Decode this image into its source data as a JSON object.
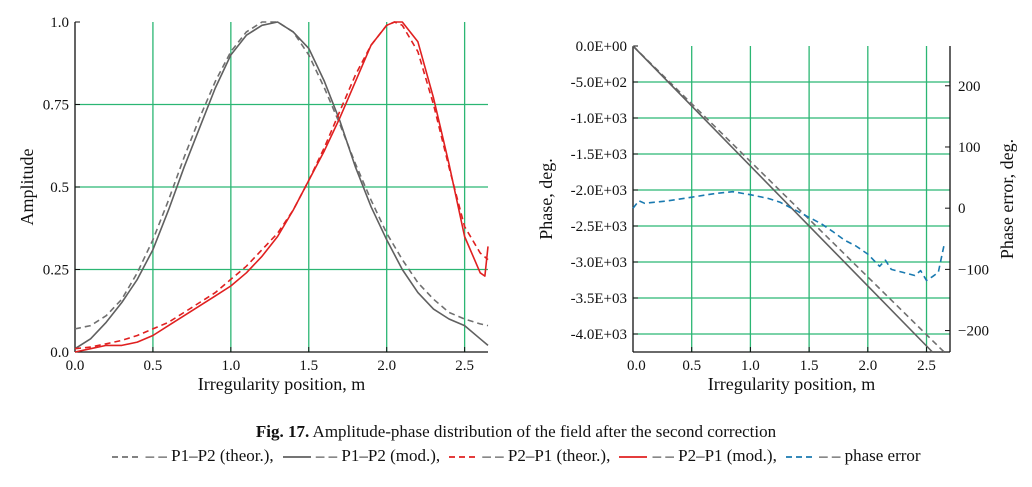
{
  "caption": {
    "number": "Fig. 17.",
    "text": "Amplitude-phase distribution of the field after the second correction"
  },
  "legend": [
    {
      "label": "– – P1–P2 (theor.),",
      "color": "#707070",
      "dash": "6,4"
    },
    {
      "label": "– – P1–P2 (mod.),",
      "color": "#606060",
      "dash": ""
    },
    {
      "label": "– – P2–P1 (theor.),",
      "color": "#e02020",
      "dash": "6,4"
    },
    {
      "label": "– – P2–P1 (mod.),",
      "color": "#e02020",
      "dash": ""
    },
    {
      "label": "– – phase error",
      "color": "#1a7ab0",
      "dash": "6,4"
    }
  ],
  "colors": {
    "grid": "#2bb673",
    "gray_theor": "#707070",
    "gray_mod": "#606060",
    "red": "#e02020",
    "blue": "#1a7ab0"
  },
  "chart_data": [
    {
      "type": "line",
      "xlabel": "Irregularity position, m",
      "ylabel": "Amplitude",
      "xlim": [
        0,
        2.65
      ],
      "ylim": [
        0,
        1.0
      ],
      "x_ticks": [
        "0.0",
        "0.5",
        "1.0",
        "1.5",
        "2.0",
        "2.5"
      ],
      "y_ticks": [
        "0.0",
        "0.25",
        "0.5",
        "0.75",
        "1.0"
      ],
      "grid": true,
      "series": [
        {
          "name": "P1–P2 (theor.)",
          "style": "dashed",
          "color": "#707070",
          "x": [
            0,
            0.1,
            0.2,
            0.3,
            0.4,
            0.5,
            0.6,
            0.7,
            0.8,
            0.9,
            1.0,
            1.1,
            1.2,
            1.3,
            1.4,
            1.5,
            1.6,
            1.7,
            1.8,
            1.9,
            2.0,
            2.1,
            2.2,
            2.3,
            2.4,
            2.5,
            2.6,
            2.65
          ],
          "y": [
            0.07,
            0.08,
            0.11,
            0.16,
            0.24,
            0.34,
            0.46,
            0.59,
            0.71,
            0.82,
            0.91,
            0.97,
            1.0,
            1.0,
            0.97,
            0.9,
            0.8,
            0.69,
            0.57,
            0.46,
            0.36,
            0.28,
            0.21,
            0.16,
            0.12,
            0.1,
            0.085,
            0.08
          ]
        },
        {
          "name": "P1–P2 (mod.)",
          "style": "solid",
          "color": "#606060",
          "x": [
            0,
            0.1,
            0.2,
            0.3,
            0.4,
            0.5,
            0.6,
            0.7,
            0.8,
            0.9,
            1.0,
            1.1,
            1.2,
            1.3,
            1.4,
            1.5,
            1.6,
            1.7,
            1.8,
            1.9,
            2.0,
            2.1,
            2.2,
            2.3,
            2.4,
            2.5,
            2.6,
            2.65
          ],
          "y": [
            0.01,
            0.04,
            0.09,
            0.15,
            0.22,
            0.31,
            0.43,
            0.56,
            0.68,
            0.8,
            0.9,
            0.96,
            0.99,
            1.0,
            0.97,
            0.92,
            0.82,
            0.7,
            0.56,
            0.44,
            0.34,
            0.25,
            0.18,
            0.13,
            0.1,
            0.08,
            0.04,
            0.02
          ]
        },
        {
          "name": "P2–P1 (theor.)",
          "style": "dashed",
          "color": "#e02020",
          "x": [
            0,
            0.1,
            0.2,
            0.3,
            0.4,
            0.5,
            0.6,
            0.7,
            0.8,
            0.9,
            1.0,
            1.1,
            1.2,
            1.3,
            1.4,
            1.5,
            1.6,
            1.7,
            1.8,
            1.9,
            2.0,
            2.05,
            2.1,
            2.2,
            2.3,
            2.4,
            2.5,
            2.6,
            2.65
          ],
          "y": [
            0.01,
            0.015,
            0.025,
            0.035,
            0.05,
            0.07,
            0.09,
            0.12,
            0.15,
            0.18,
            0.22,
            0.26,
            0.31,
            0.36,
            0.43,
            0.52,
            0.62,
            0.73,
            0.84,
            0.93,
            0.99,
            1.0,
            0.99,
            0.91,
            0.75,
            0.56,
            0.38,
            0.3,
            0.28
          ]
        },
        {
          "name": "P2–P1 (mod.)",
          "style": "solid",
          "color": "#e02020",
          "x": [
            0,
            0.1,
            0.2,
            0.3,
            0.4,
            0.5,
            0.6,
            0.7,
            0.8,
            0.9,
            1.0,
            1.1,
            1.2,
            1.3,
            1.4,
            1.5,
            1.6,
            1.7,
            1.8,
            1.9,
            2.0,
            2.05,
            2.1,
            2.2,
            2.3,
            2.4,
            2.5,
            2.6,
            2.63,
            2.65
          ],
          "y": [
            0.0,
            0.01,
            0.02,
            0.02,
            0.03,
            0.05,
            0.08,
            0.11,
            0.14,
            0.17,
            0.2,
            0.24,
            0.29,
            0.35,
            0.43,
            0.52,
            0.61,
            0.71,
            0.82,
            0.93,
            0.99,
            1.0,
            1.0,
            0.94,
            0.77,
            0.57,
            0.35,
            0.24,
            0.23,
            0.32
          ]
        }
      ]
    },
    {
      "type": "line",
      "xlabel": "Irregularity position, m",
      "ylabel": "Phase, deg.",
      "ylabel_right": "Phase error, deg.",
      "xlim": [
        0,
        2.7
      ],
      "ylim": [
        -4250,
        0
      ],
      "ylim_right": [
        -235,
        265
      ],
      "x_ticks": [
        "0.0",
        "0.5",
        "1.0",
        "1.5",
        "2.0",
        "2.5"
      ],
      "y_ticks": [
        "0.0E+00",
        "-5.0E+02",
        "-1.0E+03",
        "-1.5E+03",
        "-2.0E+03",
        "-2.5E+03",
        "-3.0E+03",
        "-3.5E+03",
        "-4.0E+03"
      ],
      "y_ticks_right": [
        "200",
        "100",
        "0",
        "−100",
        "−200"
      ],
      "grid": true,
      "series": [
        {
          "name": "P1–P2 (theor.)",
          "style": "dashed",
          "color": "#707070",
          "axis": "left",
          "x": [
            0,
            2.65
          ],
          "y": [
            0,
            -4250
          ]
        },
        {
          "name": "P1–P2 (mod.)",
          "style": "solid",
          "color": "#606060",
          "axis": "left",
          "x": [
            0,
            2.55
          ],
          "y": [
            0,
            -4250
          ]
        },
        {
          "name": "phase error",
          "style": "dashed",
          "color": "#1a7ab0",
          "axis": "right",
          "x": [
            0,
            0.05,
            0.1,
            0.3,
            0.5,
            0.7,
            0.85,
            1.0,
            1.15,
            1.25,
            1.4,
            1.5,
            1.6,
            1.7,
            1.8,
            1.9,
            2.0,
            2.1,
            2.15,
            2.2,
            2.3,
            2.4,
            2.45,
            2.5,
            2.55,
            2.6,
            2.65
          ],
          "y": [
            0,
            12,
            8,
            12,
            18,
            24,
            27,
            22,
            16,
            10,
            -5,
            -15,
            -25,
            -38,
            -52,
            -62,
            -75,
            -95,
            -85,
            -100,
            -105,
            -110,
            -102,
            -118,
            -112,
            -105,
            -60
          ]
        }
      ]
    }
  ]
}
